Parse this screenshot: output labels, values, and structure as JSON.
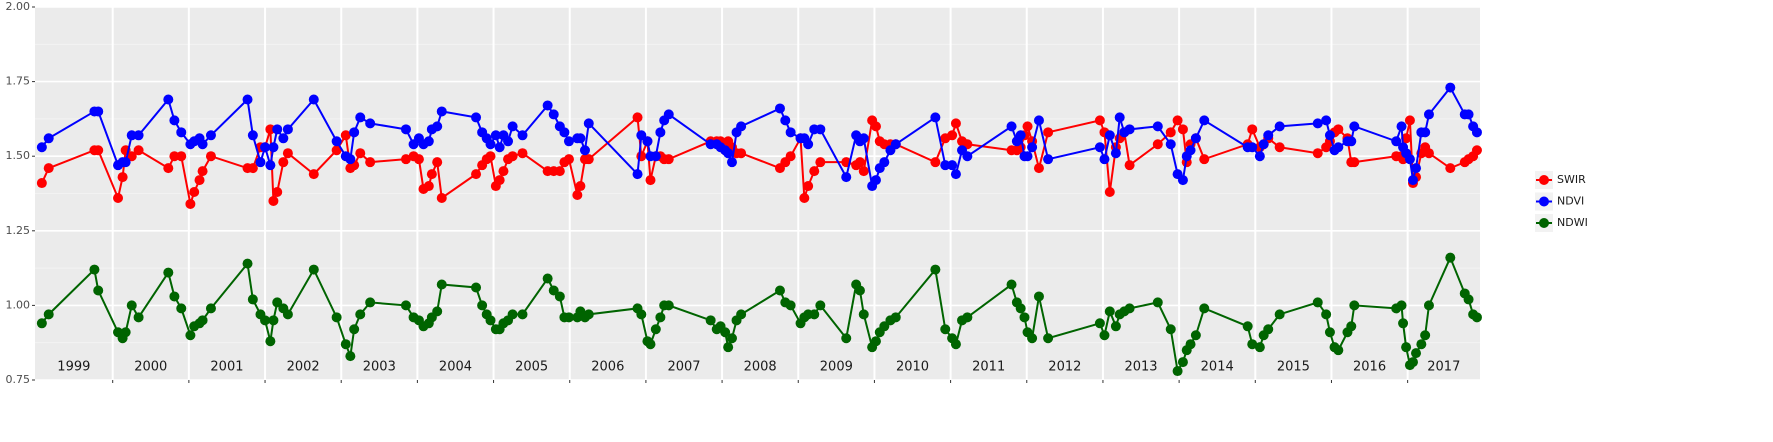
{
  "chart_data": {
    "type": "line",
    "x": [
      1999.07,
      1999.16,
      1999.76,
      1999.81,
      2000.07,
      2000.13,
      2000.17,
      2000.25,
      2000.34,
      2000.73,
      2000.81,
      2000.9,
      2001.02,
      2001.07,
      2001.14,
      2001.18,
      2001.29,
      2001.77,
      2001.84,
      2001.94,
      2002.0,
      2002.07,
      2002.11,
      2002.16,
      2002.24,
      2002.3,
      2002.64,
      2002.94,
      2003.06,
      2003.12,
      2003.17,
      2003.25,
      2003.38,
      2003.85,
      2003.95,
      2004.02,
      2004.08,
      2004.15,
      2004.19,
      2004.26,
      2004.32,
      2004.77,
      2004.85,
      2004.91,
      2004.96,
      2005.03,
      2005.08,
      2005.13,
      2005.19,
      2005.25,
      2005.38,
      2005.71,
      2005.79,
      2005.87,
      2005.93,
      2005.99,
      2006.1,
      2006.14,
      2006.2,
      2006.25,
      2006.89,
      2006.94,
      2007.02,
      2007.06,
      2007.13,
      2007.19,
      2007.24,
      2007.3,
      2007.85,
      2007.93,
      2007.98,
      2008.04,
      2008.08,
      2008.13,
      2008.19,
      2008.25,
      2008.76,
      2008.83,
      2008.9,
      2009.03,
      2009.08,
      2009.13,
      2009.21,
      2009.29,
      2009.63,
      2009.76,
      2009.81,
      2009.86,
      2009.97,
      2010.02,
      2010.07,
      2010.13,
      2010.21,
      2010.28,
      2010.8,
      2010.93,
      2011.02,
      2011.07,
      2011.15,
      2011.22,
      2011.8,
      2011.87,
      2011.92,
      2011.97,
      2012.01,
      2012.07,
      2012.16,
      2012.28,
      2012.96,
      2013.02,
      2013.09,
      2013.17,
      2013.22,
      2013.28,
      2013.35,
      2013.72,
      2013.89,
      2013.98,
      2014.05,
      2014.1,
      2014.15,
      2014.22,
      2014.33,
      2014.9,
      2014.96,
      2015.06,
      2015.11,
      2015.17,
      2015.32,
      2015.82,
      2015.93,
      2015.98,
      2016.04,
      2016.09,
      2016.21,
      2016.26,
      2016.3,
      2016.85,
      2016.92,
      2016.94,
      2016.98,
      2017.03,
      2017.07,
      2017.11,
      2017.18,
      2017.23,
      2017.28,
      2017.56,
      2017.75,
      2017.8,
      2017.86,
      2017.91
    ],
    "series": [
      {
        "name": "SWIR",
        "color": "#ff0000",
        "values": [
          1.41,
          1.46,
          1.52,
          1.52,
          1.36,
          1.43,
          1.52,
          1.5,
          1.52,
          1.46,
          1.5,
          1.5,
          1.34,
          1.38,
          1.42,
          1.45,
          1.5,
          1.46,
          1.46,
          1.53,
          1.53,
          1.59,
          1.35,
          1.38,
          1.48,
          1.51,
          1.44,
          1.52,
          1.57,
          1.46,
          1.47,
          1.51,
          1.48,
          1.49,
          1.5,
          1.49,
          1.39,
          1.4,
          1.44,
          1.48,
          1.36,
          1.44,
          1.47,
          1.49,
          1.5,
          1.4,
          1.42,
          1.45,
          1.49,
          1.5,
          1.51,
          1.45,
          1.45,
          1.45,
          1.48,
          1.49,
          1.37,
          1.4,
          1.49,
          1.49,
          1.63,
          1.5,
          1.55,
          1.42,
          1.5,
          1.5,
          1.49,
          1.49,
          1.55,
          1.55,
          1.55,
          1.52,
          1.55,
          1.53,
          1.51,
          1.51,
          1.46,
          1.48,
          1.5,
          1.56,
          1.36,
          1.4,
          1.45,
          1.48,
          1.48,
          1.47,
          1.48,
          1.45,
          1.62,
          1.6,
          1.55,
          1.54,
          1.54,
          1.54,
          1.48,
          1.56,
          1.57,
          1.61,
          1.55,
          1.54,
          1.52,
          1.52,
          1.53,
          1.57,
          1.6,
          1.55,
          1.46,
          1.58,
          1.62,
          1.58,
          1.38,
          1.53,
          1.56,
          1.58,
          1.47,
          1.54,
          1.58,
          1.62,
          1.59,
          1.48,
          1.54,
          1.56,
          1.49,
          1.54,
          1.59,
          1.53,
          1.54,
          1.56,
          1.53,
          1.51,
          1.53,
          1.55,
          1.58,
          1.59,
          1.56,
          1.48,
          1.48,
          1.5,
          1.5,
          1.49,
          1.56,
          1.62,
          1.41,
          1.43,
          1.51,
          1.53,
          1.51,
          1.46,
          1.48,
          1.49,
          1.5,
          1.52
        ]
      },
      {
        "name": "NDVI",
        "color": "#0000ff",
        "values": [
          1.53,
          1.56,
          1.65,
          1.65,
          1.47,
          1.48,
          1.48,
          1.57,
          1.57,
          1.69,
          1.62,
          1.58,
          1.54,
          1.55,
          1.56,
          1.54,
          1.57,
          1.69,
          1.57,
          1.48,
          1.53,
          1.47,
          1.53,
          1.59,
          1.56,
          1.59,
          1.69,
          1.55,
          1.5,
          1.49,
          1.58,
          1.63,
          1.61,
          1.59,
          1.54,
          1.56,
          1.54,
          1.55,
          1.59,
          1.6,
          1.65,
          1.63,
          1.58,
          1.56,
          1.54,
          1.57,
          1.53,
          1.57,
          1.55,
          1.6,
          1.57,
          1.67,
          1.64,
          1.6,
          1.58,
          1.55,
          1.56,
          1.56,
          1.52,
          1.61,
          1.44,
          1.57,
          1.55,
          1.5,
          1.5,
          1.58,
          1.62,
          1.64,
          1.54,
          1.54,
          1.53,
          1.52,
          1.51,
          1.48,
          1.58,
          1.6,
          1.66,
          1.62,
          1.58,
          1.56,
          1.56,
          1.54,
          1.59,
          1.59,
          1.43,
          1.57,
          1.55,
          1.56,
          1.4,
          1.42,
          1.46,
          1.48,
          1.52,
          1.54,
          1.63,
          1.47,
          1.47,
          1.44,
          1.52,
          1.5,
          1.6,
          1.55,
          1.57,
          1.5,
          1.5,
          1.53,
          1.62,
          1.49,
          1.53,
          1.49,
          1.57,
          1.51,
          1.63,
          1.58,
          1.59,
          1.6,
          1.54,
          1.44,
          1.42,
          1.5,
          1.52,
          1.56,
          1.62,
          1.53,
          1.53,
          1.5,
          1.54,
          1.57,
          1.6,
          1.61,
          1.62,
          1.57,
          1.52,
          1.53,
          1.55,
          1.55,
          1.6,
          1.55,
          1.6,
          1.53,
          1.51,
          1.49,
          1.42,
          1.46,
          1.58,
          1.58,
          1.64,
          1.73,
          1.64,
          1.64,
          1.6,
          1.58
        ]
      },
      {
        "name": "NDWI",
        "color": "#006400",
        "values": [
          0.94,
          0.97,
          1.12,
          1.05,
          0.91,
          0.89,
          0.91,
          1.0,
          0.96,
          1.11,
          1.03,
          0.99,
          0.9,
          0.93,
          0.94,
          0.95,
          0.99,
          1.14,
          1.02,
          0.97,
          0.95,
          0.88,
          0.95,
          1.01,
          0.99,
          0.97,
          1.12,
          0.96,
          0.87,
          0.83,
          0.92,
          0.97,
          1.01,
          1.0,
          0.96,
          0.95,
          0.93,
          0.94,
          0.96,
          0.98,
          1.07,
          1.06,
          1.0,
          0.97,
          0.95,
          0.92,
          0.92,
          0.94,
          0.95,
          0.97,
          0.97,
          1.09,
          1.05,
          1.03,
          0.96,
          0.96,
          0.96,
          0.98,
          0.96,
          0.97,
          0.99,
          0.97,
          0.88,
          0.87,
          0.92,
          0.96,
          1.0,
          1.0,
          0.95,
          0.92,
          0.93,
          0.91,
          0.86,
          0.89,
          0.95,
          0.97,
          1.05,
          1.01,
          1.0,
          0.94,
          0.96,
          0.97,
          0.97,
          1.0,
          0.89,
          1.07,
          1.05,
          0.97,
          0.86,
          0.88,
          0.91,
          0.93,
          0.95,
          0.96,
          1.12,
          0.92,
          0.89,
          0.87,
          0.95,
          0.96,
          1.07,
          1.01,
          0.99,
          0.96,
          0.91,
          0.89,
          1.03,
          0.89,
          0.94,
          0.9,
          0.98,
          0.93,
          0.97,
          0.98,
          0.99,
          1.01,
          0.92,
          0.78,
          0.81,
          0.85,
          0.87,
          0.9,
          0.99,
          0.93,
          0.87,
          0.86,
          0.9,
          0.92,
          0.97,
          1.01,
          0.97,
          0.91,
          0.86,
          0.85,
          0.91,
          0.93,
          1.0,
          0.99,
          1.0,
          0.94,
          0.86,
          0.8,
          0.81,
          0.84,
          0.87,
          0.9,
          1.0,
          1.16,
          1.04,
          1.02,
          0.97,
          0.96
        ]
      }
    ],
    "xlim": [
      1998.98,
      2017.95
    ],
    "xticks": [
      2000,
      2001,
      2002,
      2003,
      2004,
      2005,
      2006,
      2007,
      2008,
      2009,
      2010,
      2011,
      2012,
      2013,
      2014,
      2015,
      2016,
      2017
    ],
    "year_labels": [
      "1999",
      "2000",
      "2001",
      "2002",
      "2003",
      "2004",
      "2005",
      "2006",
      "2007",
      "2008",
      "2009",
      "2010",
      "2011",
      "2012",
      "2013",
      "2014",
      "2015",
      "2016",
      "2017"
    ],
    "ylim": [
      0.75,
      2.0
    ],
    "yticks": [
      0.75,
      {
        "value": 1,
        "label": "1.00"
      },
      {
        "value": 1.25,
        "label": "1.25"
      },
      {
        "value": 1.5,
        "label": "1.50"
      },
      {
        "value": 1.75,
        "label": "1.75"
      },
      {
        "value": 2,
        "label": "2.00"
      }
    ],
    "grid": true,
    "legend": "right"
  }
}
